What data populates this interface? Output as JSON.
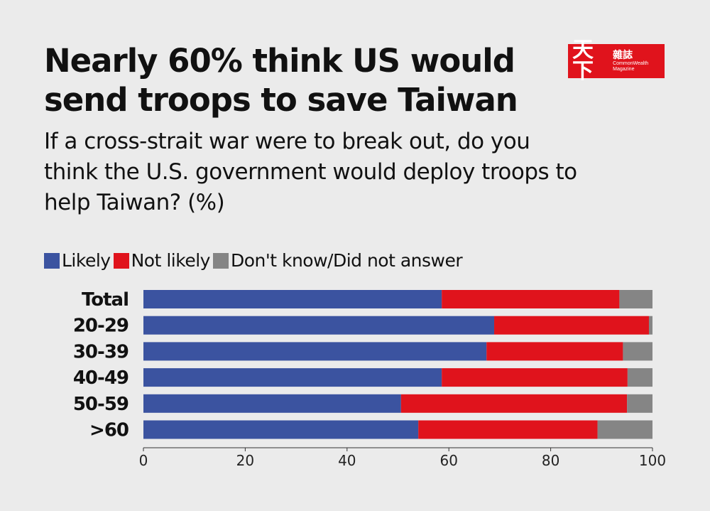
{
  "logo": {
    "main": "天下",
    "side": "雜誌",
    "english": "CommonWealth Magazine"
  },
  "chart_data": {
    "type": "bar",
    "orientation": "horizontal",
    "stacked": true,
    "title": "Nearly 60% think US would send troops to save Taiwan",
    "subtitle": "If a cross-strait war were to break out, do you think the U.S. government would deploy troops to help Taiwan? (%)",
    "categories": [
      "Total",
      "20-29",
      "30-39",
      "40-49",
      "50-59",
      ">60"
    ],
    "series": [
      {
        "name": "Likely",
        "color": "#3b53a0",
        "values": [
          58.6,
          68.9,
          67.4,
          58.6,
          50.6,
          54.0
        ]
      },
      {
        "name": "Not likely",
        "color": "#e0131c",
        "values": [
          34.9,
          30.4,
          26.8,
          36.5,
          44.4,
          35.2
        ]
      },
      {
        "name": "Don't know/Did not answer",
        "color": "#858585",
        "values": [
          6.5,
          0.7,
          5.8,
          4.9,
          5.0,
          10.8
        ]
      }
    ],
    "xlim": [
      0,
      100
    ],
    "xticks": [
      "0",
      "20",
      "40",
      "60",
      "80",
      "100"
    ],
    "legend_position": "top-left",
    "grid": false
  }
}
